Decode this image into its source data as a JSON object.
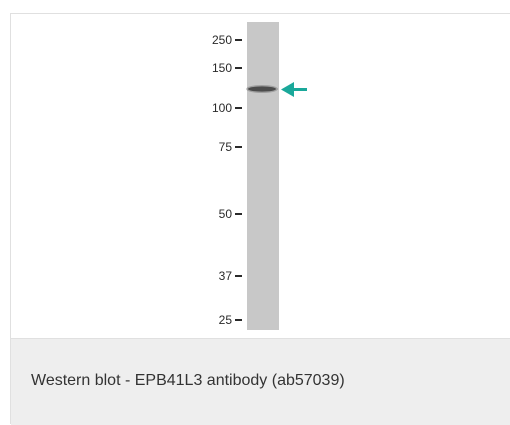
{
  "figure": {
    "markers": [
      "250",
      "150",
      "100",
      "75",
      "50",
      "37",
      "25"
    ],
    "arrow_color": "#1aa89a",
    "lane_color": "#c8c8c8",
    "band_color": "#3a3a3a",
    "caption": "Western blot - EPB41L3 antibody (ab57039)"
  }
}
